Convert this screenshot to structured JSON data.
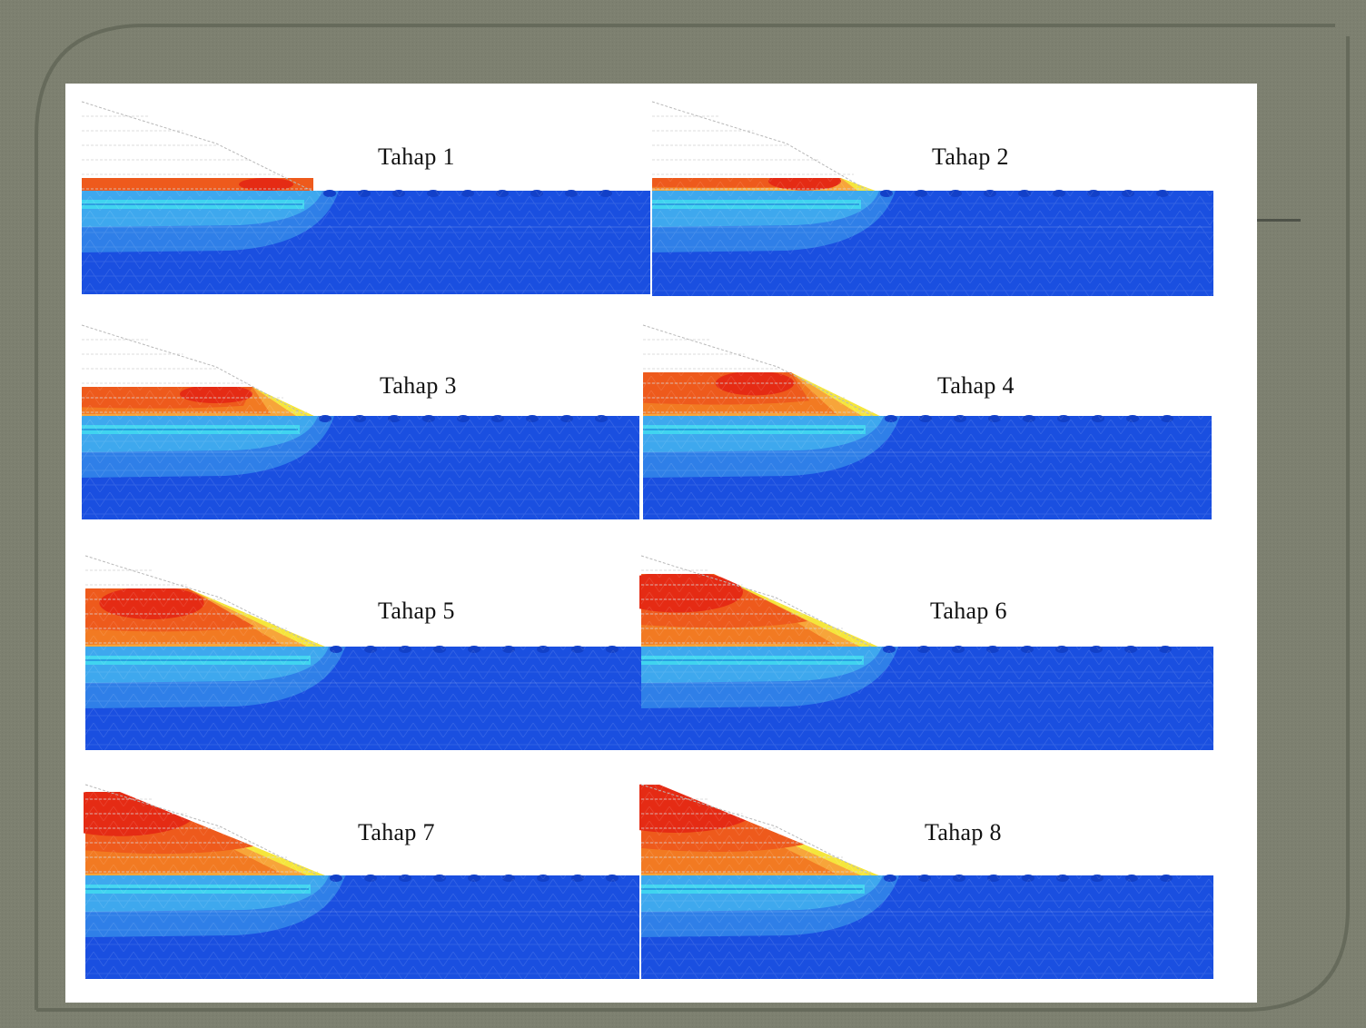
{
  "palette": {
    "frame": "#7d8070",
    "frame_dark": "#6b6e5f",
    "paper": "#ffffff",
    "deep_blue": "#1a4fe0",
    "mid_blue": "#2f7fe8",
    "light_blue": "#3ea8ee",
    "cyan": "#40d4f0",
    "yellow": "#f5e63c",
    "orange_light": "#f7a53a",
    "orange": "#f27a22",
    "orange_red": "#ee5a1c",
    "red": "#e52b14"
  },
  "stages": [
    {
      "title": "Tahap 1"
    },
    {
      "title": "Tahap 2"
    },
    {
      "title": "Tahap 3"
    },
    {
      "title": "Tahap 4"
    },
    {
      "title": "Tahap 5"
    },
    {
      "title": "Tahap 6"
    },
    {
      "title": "Tahap 7"
    },
    {
      "title": "Tahap 8"
    }
  ]
}
